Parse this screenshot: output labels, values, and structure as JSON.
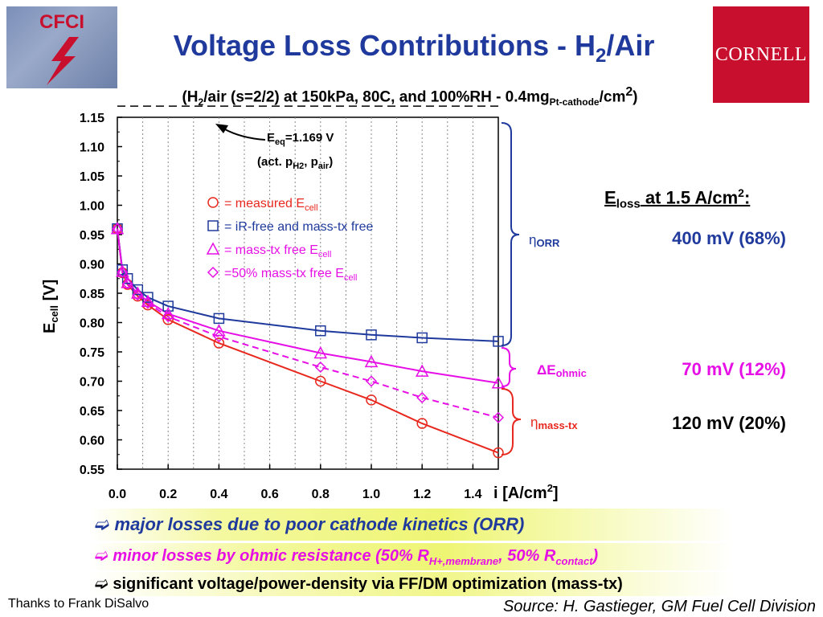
{
  "logos": {
    "left": "CFCI",
    "right": "CORNELL"
  },
  "title": {
    "main": "Voltage Loss Contributions - H",
    "sub": "2",
    "tail": "/Air"
  },
  "subtitle": {
    "a": "(H",
    "a_sub": "2",
    "b": "/air (s=2/2) at 150kPa, 80C, and 100%RH - 0.4mg",
    "b_sub": "Pt-cathode",
    "c": "/cm",
    "c_sup": "2",
    "d": ")"
  },
  "eloss": {
    "prefix": "E",
    "sub": "loss",
    "mid": " at 1.5 A/cm",
    "sup": "2",
    "suffix": ":"
  },
  "losses": {
    "orr": {
      "symbol": "η",
      "label": "ORR",
      "value": "400 mV (68%)"
    },
    "ohmic": {
      "symbol": "ΔE",
      "label": "ohmic",
      "value": "70 mV (12%)"
    },
    "mass_tx": {
      "symbol": "η",
      "label": "mass-tx",
      "value": "120 mV (20%)"
    }
  },
  "notes": [
    {
      "arrow": "➫",
      "text": " major losses due to poor cathode kinetics (ORR)"
    },
    {
      "arrow": "➫",
      "text": " minor losses by ohmic resistance (50% R",
      "sub1": "H+,membrane",
      "mid": ", 50% R",
      "sub2": "contact",
      "end": ")"
    },
    {
      "arrow": "➫",
      "text": " significant voltage/power-density via FF/DM optimization (mass-tx)"
    }
  ],
  "thanks": "Thanks to Frank DiSalvo",
  "source": "Source: H. Gastieger, GM Fuel Cell Division",
  "colors": {
    "title": "#1f3a9c",
    "measured": "#e8281e",
    "irfree": "#1f3a9c",
    "masstx": "#e60fe6",
    "logo_red": "#c8102e",
    "highlight": "#eef573"
  },
  "chart_data": {
    "type": "line",
    "xlabel": "i [A/cm",
    "xlabel_sup": "2",
    "xlabel_end": "]",
    "ylabel": "E",
    "ylabel_sub": "cell",
    "ylabel_end": " [V]",
    "xlim": [
      0,
      1.5
    ],
    "ylim": [
      0.55,
      1.15
    ],
    "xticks": [
      "0.0",
      "0.2",
      "0.4",
      "0.6",
      "0.8",
      "1.0",
      "1.2",
      "1.4"
    ],
    "yticks": [
      "1.15",
      "1.10",
      "1.05",
      "1.00",
      "0.95",
      "0.90",
      "0.85",
      "0.80",
      "0.75",
      "0.70",
      "0.65",
      "0.60",
      "0.55"
    ],
    "eeq": {
      "value": 1.169,
      "label_a": "E",
      "label_a_sub": "eq",
      "label_a_end": "=1.169 V",
      "label_b": "(act. p",
      "label_b_sub": "H2",
      "label_b_mid": ", p",
      "label_b_sub2": "air",
      "label_b_end": ")"
    },
    "series": [
      {
        "name": "= measured E",
        "name_sub": "cell",
        "marker": "circle",
        "color": "#e8281e",
        "dashed": false,
        "x": [
          0.0,
          0.02,
          0.04,
          0.08,
          0.12,
          0.2,
          0.4,
          0.8,
          1.0,
          1.2,
          1.5
        ],
        "y": [
          0.96,
          0.885,
          0.865,
          0.845,
          0.83,
          0.805,
          0.765,
          0.7,
          0.668,
          0.628,
          0.578
        ]
      },
      {
        "name": "= iR-free and mass-tx free",
        "name_sub": "",
        "marker": "square",
        "color": "#1f3a9c",
        "dashed": false,
        "x": [
          0.0,
          0.02,
          0.04,
          0.08,
          0.12,
          0.2,
          0.4,
          0.8,
          1.0,
          1.2,
          1.5
        ],
        "y": [
          0.96,
          0.89,
          0.875,
          0.856,
          0.843,
          0.828,
          0.807,
          0.786,
          0.779,
          0.774,
          0.768
        ]
      },
      {
        "name": "= mass-tx free E",
        "name_sub": "cell",
        "marker": "triangle",
        "color": "#e60fe6",
        "dashed": false,
        "x": [
          0.0,
          0.02,
          0.04,
          0.08,
          0.12,
          0.2,
          0.4,
          0.8,
          1.0,
          1.2,
          1.5
        ],
        "y": [
          0.96,
          0.887,
          0.868,
          0.85,
          0.836,
          0.815,
          0.786,
          0.748,
          0.733,
          0.717,
          0.697
        ]
      },
      {
        "name": "=50% mass-tx free E",
        "name_sub": "cell",
        "marker": "diamond",
        "color": "#e60fe6",
        "dashed": true,
        "x": [
          0.0,
          0.02,
          0.04,
          0.08,
          0.12,
          0.2,
          0.4,
          0.8,
          1.0,
          1.2,
          1.5
        ],
        "y": [
          0.96,
          0.886,
          0.866,
          0.847,
          0.833,
          0.81,
          0.776,
          0.724,
          0.7,
          0.672,
          0.638
        ]
      }
    ]
  }
}
